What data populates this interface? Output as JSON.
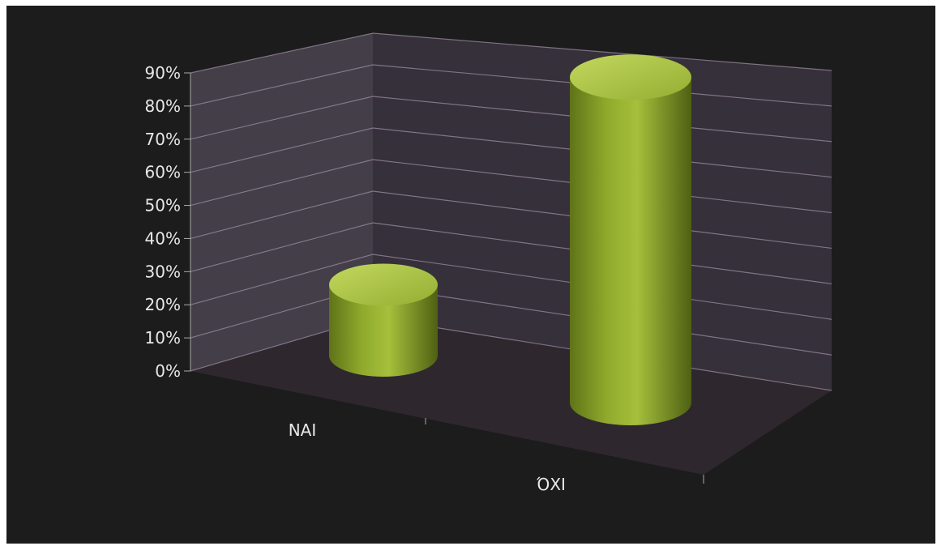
{
  "chart_data": {
    "type": "bar",
    "style": "3d-cylinder",
    "categories": [
      "NAI",
      "ΌΧΙ"
    ],
    "values": [
      0.17,
      0.78
    ],
    "ylim": [
      0,
      0.9
    ],
    "yticks": [
      "0%",
      "10%",
      "20%",
      "30%",
      "40%",
      "50%",
      "60%",
      "70%",
      "80%",
      "90%"
    ],
    "grid": true,
    "legend": "none",
    "colors": {
      "background": "#1c1c1c",
      "bar": "#9bb733",
      "bar_top": "#b3cc50",
      "gridline": "#9c8aa0",
      "side_wall": "#4a4450",
      "back_wall": "#3a3440",
      "floor": "#2e282e",
      "text": "#e8e8e8"
    }
  }
}
